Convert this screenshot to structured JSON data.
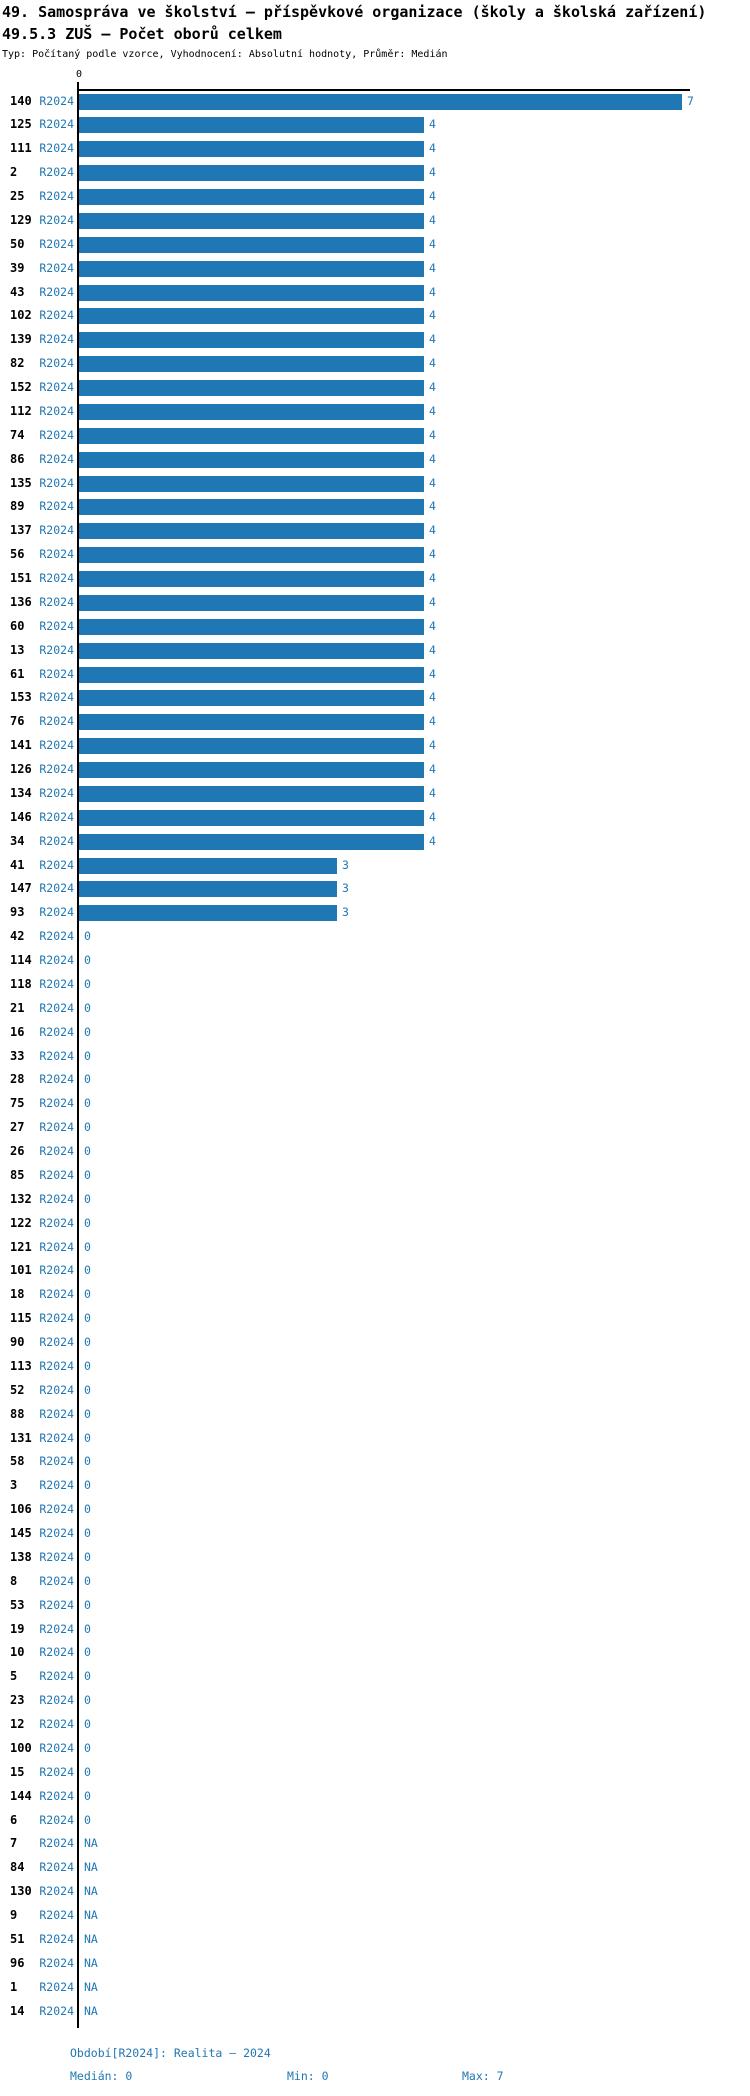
{
  "title": "49. Samospráva ve školství – příspěvkové organizace (školy a školská zařízení)",
  "subtitle": "49.5.3 ZUŠ – Počet oborů celkem",
  "meta": "Typ: Počítaný podle vzorce, Vyhodnocení: Absolutní hodnoty, Průměr: Medián",
  "series_label": "R2024",
  "axis": {
    "zero_label": "0"
  },
  "colors": {
    "bar": "#1f77b4",
    "accent": "#1f77b4",
    "text": "#000000"
  },
  "footer": {
    "period": "Období[R2024]: Realita – 2024",
    "median": "Medián: 0",
    "min": "Min: 0",
    "max": "Max: 7"
  },
  "chart_data": {
    "type": "bar",
    "orientation": "horizontal",
    "title": "49.5.3 ZUŠ – Počet oborů celkem",
    "series_name": "R2024",
    "xlim": [
      0,
      7.1
    ],
    "grid": false,
    "legend": "none",
    "stats": {
      "median": 0,
      "min": 0,
      "max": 7
    },
    "categories": [
      "140",
      "125",
      "111",
      "2",
      "25",
      "129",
      "50",
      "39",
      "43",
      "102",
      "139",
      "82",
      "152",
      "112",
      "74",
      "86",
      "135",
      "89",
      "137",
      "56",
      "151",
      "136",
      "60",
      "13",
      "61",
      "153",
      "76",
      "141",
      "126",
      "134",
      "146",
      "34",
      "41",
      "147",
      "93",
      "42",
      "114",
      "118",
      "21",
      "16",
      "33",
      "28",
      "75",
      "27",
      "26",
      "85",
      "132",
      "122",
      "121",
      "101",
      "18",
      "115",
      "90",
      "113",
      "52",
      "88",
      "131",
      "58",
      "3",
      "106",
      "145",
      "138",
      "8",
      "53",
      "19",
      "10",
      "5",
      "23",
      "12",
      "100",
      "15",
      "144",
      "6",
      "7",
      "84",
      "130",
      "9",
      "51",
      "96",
      "1",
      "14"
    ],
    "values": [
      7,
      4,
      4,
      4,
      4,
      4,
      4,
      4,
      4,
      4,
      4,
      4,
      4,
      4,
      4,
      4,
      4,
      4,
      4,
      4,
      4,
      4,
      4,
      4,
      4,
      4,
      4,
      4,
      4,
      4,
      4,
      4,
      3,
      3,
      3,
      0,
      0,
      0,
      0,
      0,
      0,
      0,
      0,
      0,
      0,
      0,
      0,
      0,
      0,
      0,
      0,
      0,
      0,
      0,
      0,
      0,
      0,
      0,
      0,
      0,
      0,
      0,
      0,
      0,
      0,
      0,
      0,
      0,
      0,
      0,
      0,
      0,
      0,
      null,
      null,
      null,
      null,
      null,
      null,
      null,
      null
    ],
    "value_labels": [
      "7",
      "4",
      "4",
      "4",
      "4",
      "4",
      "4",
      "4",
      "4",
      "4",
      "4",
      "4",
      "4",
      "4",
      "4",
      "4",
      "4",
      "4",
      "4",
      "4",
      "4",
      "4",
      "4",
      "4",
      "4",
      "4",
      "4",
      "4",
      "4",
      "4",
      "4",
      "4",
      "3",
      "3",
      "3",
      "0",
      "0",
      "0",
      "0",
      "0",
      "0",
      "0",
      "0",
      "0",
      "0",
      "0",
      "0",
      "0",
      "0",
      "0",
      "0",
      "0",
      "0",
      "0",
      "0",
      "0",
      "0",
      "0",
      "0",
      "0",
      "0",
      "0",
      "0",
      "0",
      "0",
      "0",
      "0",
      "0",
      "0",
      "0",
      "0",
      "0",
      "0",
      "NA",
      "NA",
      "NA",
      "NA",
      "NA",
      "NA",
      "NA",
      "NA"
    ]
  }
}
